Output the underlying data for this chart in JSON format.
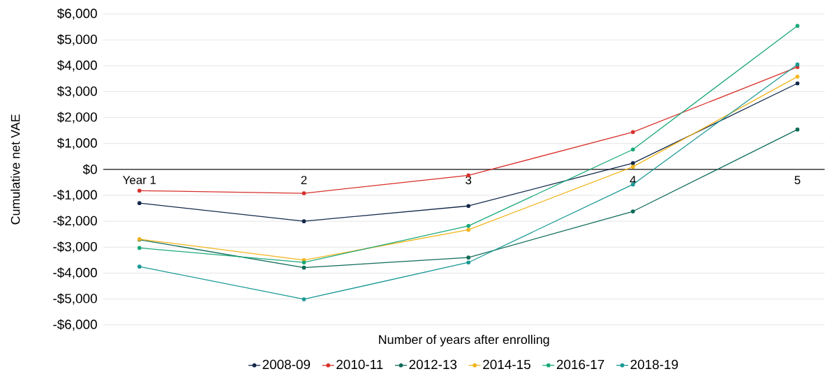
{
  "chart_data": {
    "type": "line",
    "xlabel": "Number of years after enrolling",
    "ylabel": "Cumulative net VAE",
    "categories": [
      "Year 1",
      "2",
      "3",
      "4",
      "5"
    ],
    "series": [
      {
        "name": "2008-09",
        "color": "#13294b",
        "values": [
          -1300,
          -2000,
          -1410,
          240,
          3320
        ]
      },
      {
        "name": "2010-11",
        "color": "#d7312b",
        "values": [
          -820,
          -920,
          -230,
          1440,
          3950
        ]
      },
      {
        "name": "2012-13",
        "color": "#0e6b58",
        "values": [
          -2710,
          -3790,
          -3400,
          -1620,
          1540
        ]
      },
      {
        "name": "2014-15",
        "color": "#f2b51b",
        "values": [
          -2690,
          -3500,
          -2330,
          100,
          3580
        ]
      },
      {
        "name": "2016-17",
        "color": "#1aa97a",
        "values": [
          -3030,
          -3590,
          -2180,
          770,
          5540
        ]
      },
      {
        "name": "2018-19",
        "color": "#1a9a96",
        "values": [
          -3750,
          -5010,
          -3590,
          -580,
          4050
        ]
      }
    ],
    "ylim": [
      -6000,
      6000
    ],
    "yticks": [
      {
        "value": 6000,
        "label": "$6,000"
      },
      {
        "value": 5000,
        "label": "$5,000"
      },
      {
        "value": 4000,
        "label": "$4,000"
      },
      {
        "value": 3000,
        "label": "$3,000"
      },
      {
        "value": 2000,
        "label": "$2,000"
      },
      {
        "value": 1000,
        "label": "$1,000"
      },
      {
        "value": 0,
        "label": "$0"
      },
      {
        "value": -1000,
        "label": "-$1,000"
      },
      {
        "value": -2000,
        "label": "-$2,000"
      },
      {
        "value": -3000,
        "label": "-$3,000"
      },
      {
        "value": -4000,
        "label": "-$4,000"
      },
      {
        "value": -5000,
        "label": "-$5,000"
      },
      {
        "value": -6000,
        "label": "-$6,000"
      }
    ],
    "grid": "y",
    "legend": "bottom",
    "marker": "circle",
    "line_style": "solid"
  }
}
